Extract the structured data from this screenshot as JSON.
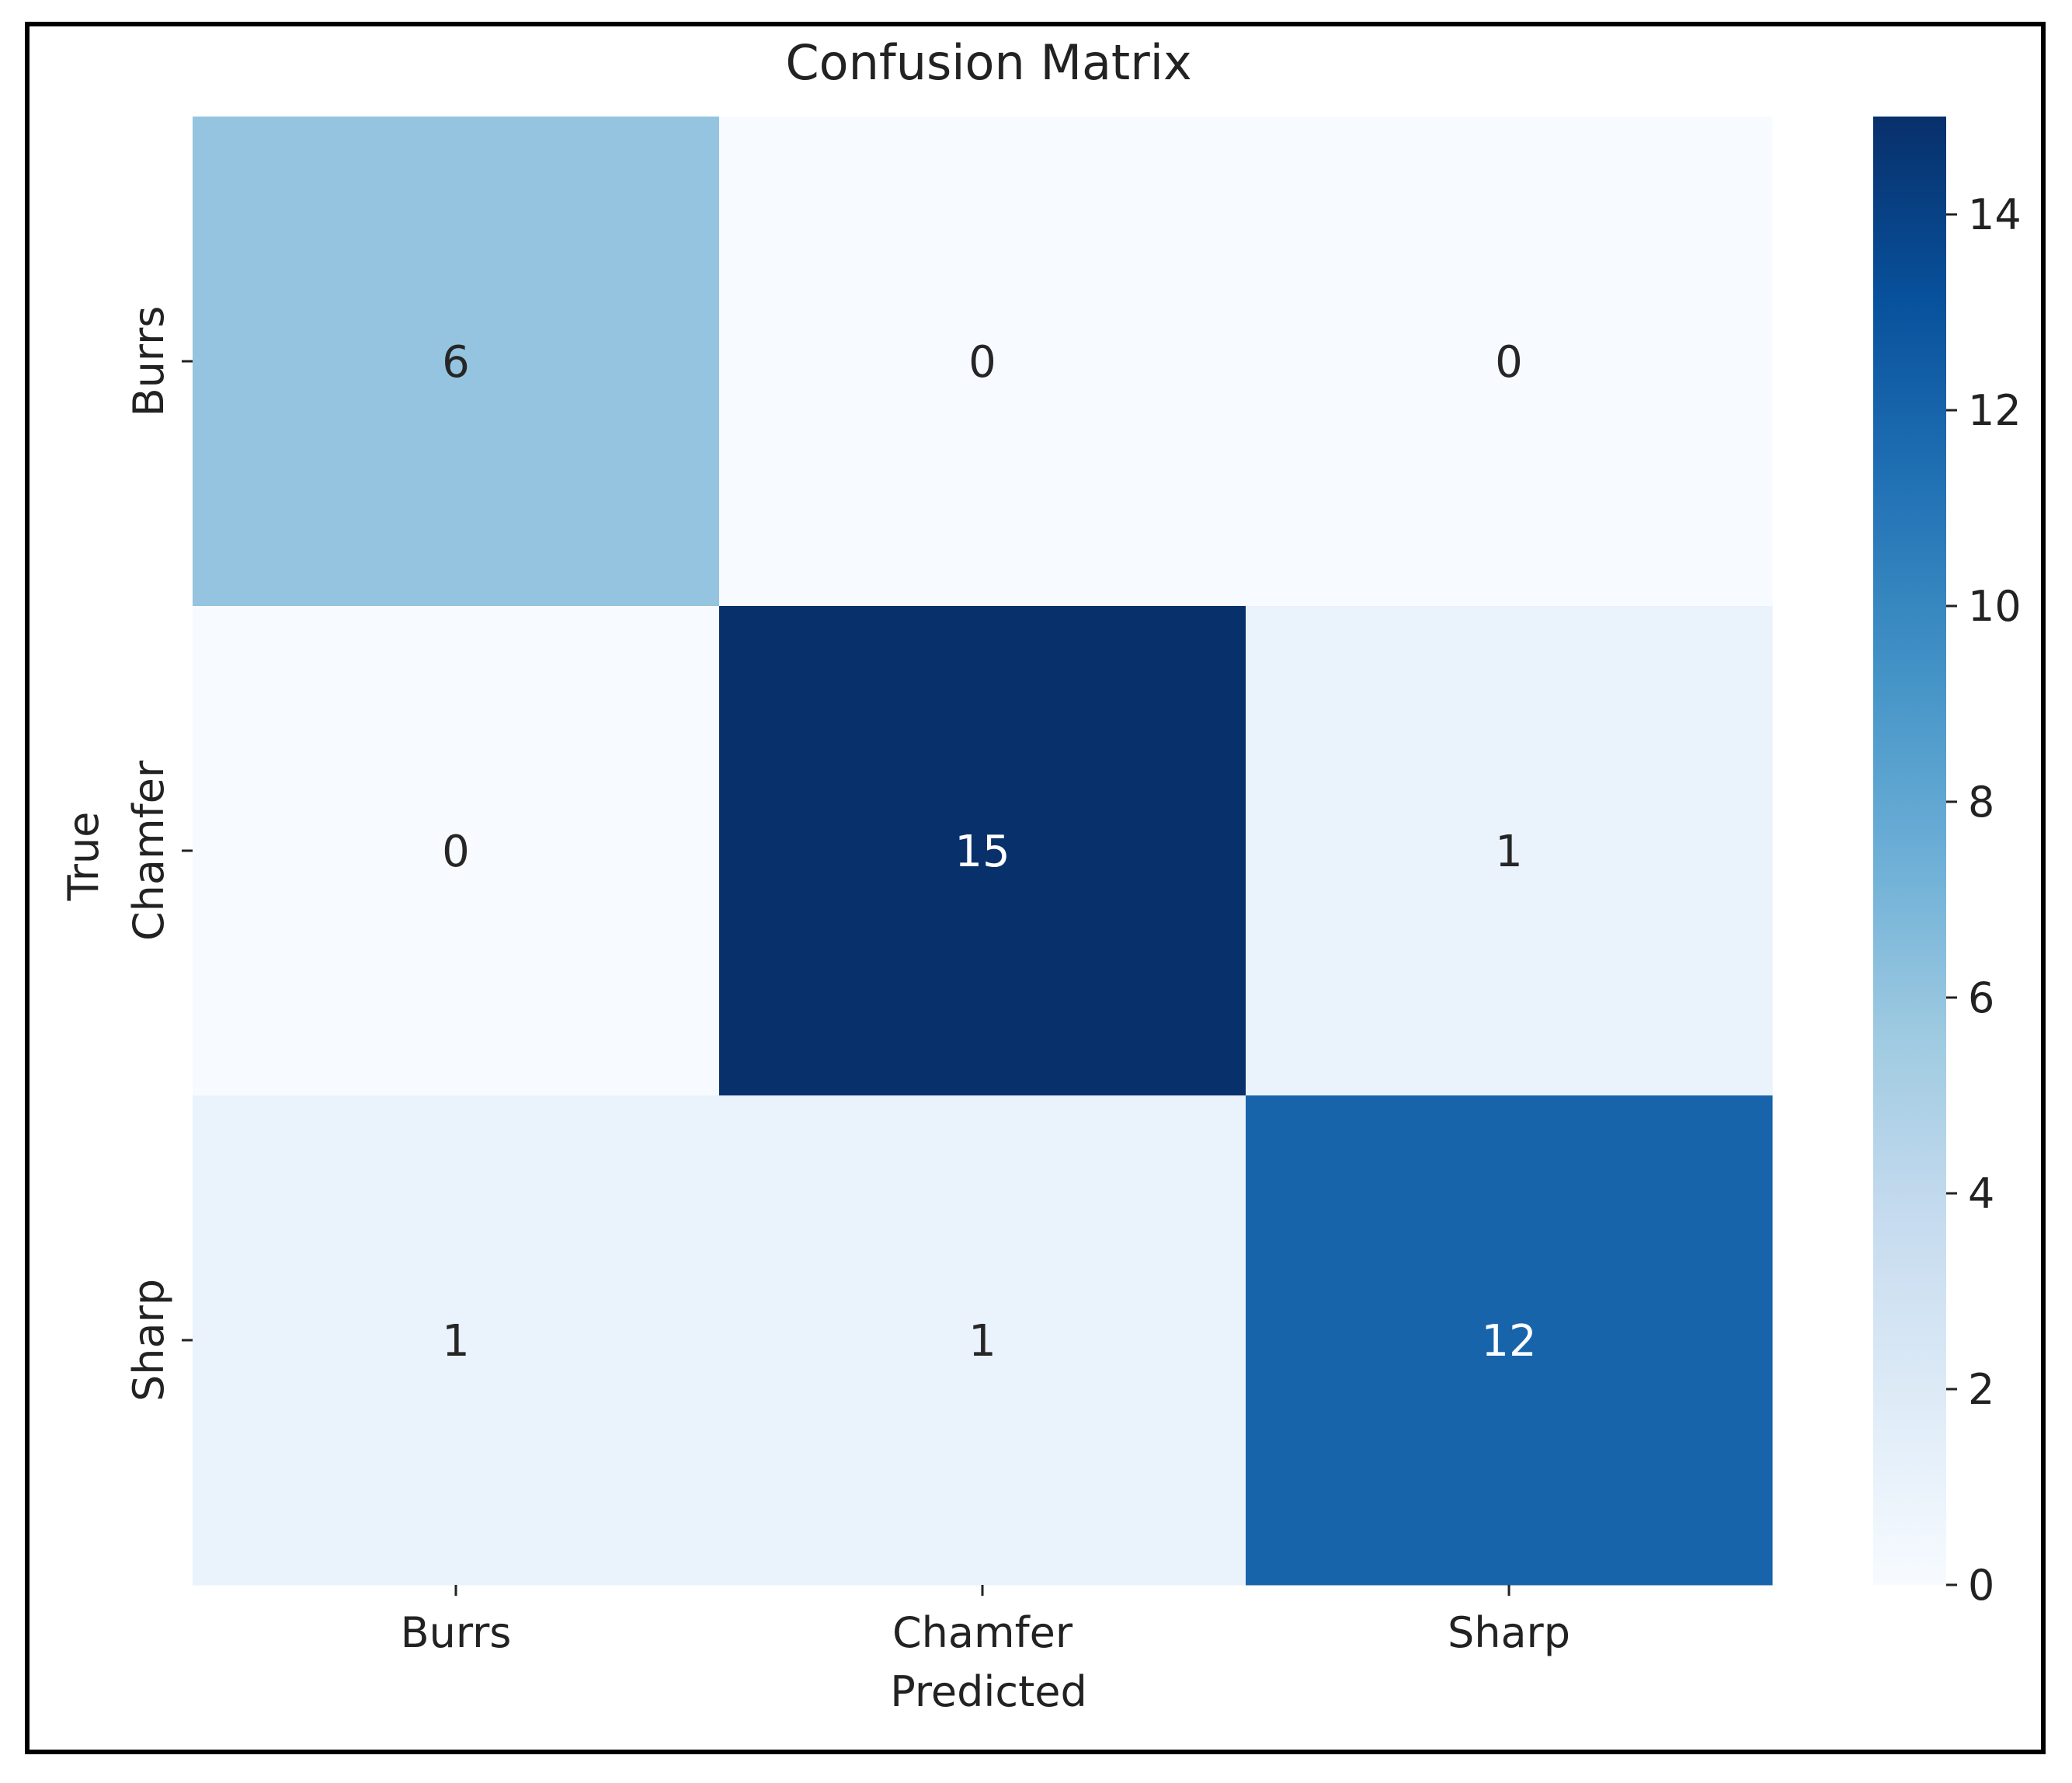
{
  "chart_data": {
    "type": "heatmap",
    "title": "Confusion Matrix",
    "xlabel": "Predicted",
    "ylabel": "True",
    "x_categories": [
      "Burrs",
      "Chamfer",
      "Sharp"
    ],
    "y_categories": [
      "Burrs",
      "Chamfer",
      "Sharp"
    ],
    "values": [
      [
        6,
        0,
        0
      ],
      [
        0,
        15,
        1
      ],
      [
        1,
        1,
        12
      ]
    ],
    "colorbar": {
      "min": 0,
      "max": 15,
      "ticks": [
        0,
        2,
        4,
        6,
        8,
        10,
        12,
        14
      ],
      "colormap": "Blues"
    },
    "grid": false
  }
}
